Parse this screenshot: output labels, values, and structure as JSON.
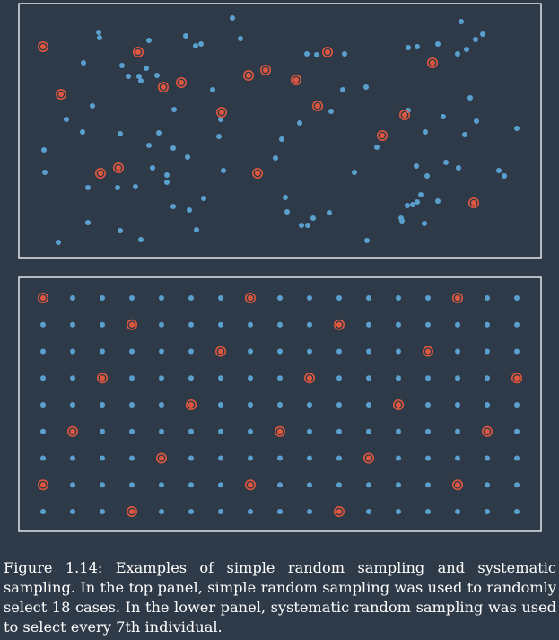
{
  "caption": {
    "text": "Figure 1.14: Examples of simple random sampling and systematic sampling. In the top panel, simple random sampling was used to randomly select 18 cases. In the lower panel, systematic random sampling was used to select every 7th individual."
  },
  "colors": {
    "background": "#2f3a49",
    "point": "#5aa0cf",
    "selected": "#e0573f",
    "frame": "#ffffff"
  },
  "panels": {
    "random": {
      "description": "simple random sampling",
      "selected_count": 18
    },
    "systematic": {
      "description": "systematic sampling",
      "rows": 9,
      "cols": 17,
      "every_nth": 7
    }
  }
}
